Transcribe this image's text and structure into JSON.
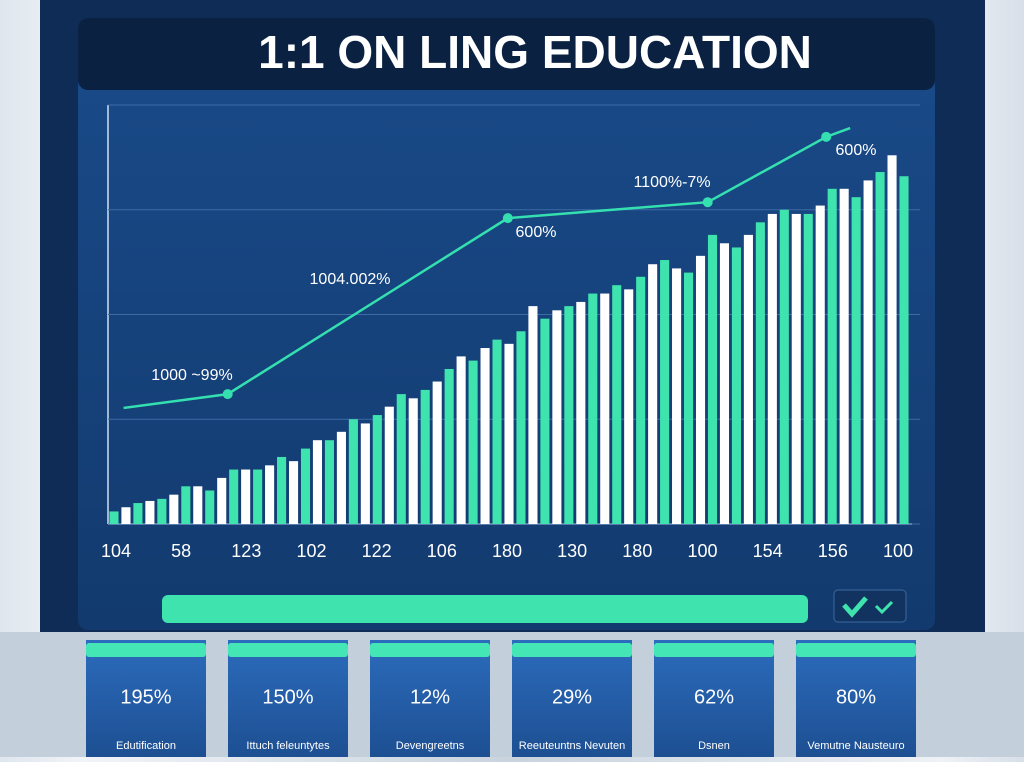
{
  "chart_data": {
    "type": "bar",
    "title": "1:1 ON  LING EDUCATION",
    "xtick_labels": [
      "104",
      "58",
      "123",
      "102",
      "122",
      "106",
      "180",
      "130",
      "180",
      "100",
      "154",
      "156",
      "100"
    ],
    "values": [
      3,
      4,
      5,
      5.5,
      6,
      7,
      9,
      9,
      8,
      11,
      13,
      13,
      13,
      14,
      16,
      15,
      18,
      20,
      20,
      22,
      25,
      24,
      26,
      28,
      31,
      30,
      32,
      34,
      37,
      40,
      39,
      42,
      44,
      43,
      46,
      52,
      49,
      51,
      52,
      53,
      55,
      55,
      57,
      56,
      59,
      62,
      63,
      61,
      60,
      64,
      69,
      67,
      66,
      69,
      72,
      74,
      75,
      74,
      74,
      76,
      80,
      80,
      78,
      82,
      84,
      88,
      83
    ],
    "colors": [
      "#3fe3ad",
      "#ffffff"
    ],
    "ylim": [
      0,
      100
    ],
    "yticks": [
      0,
      25,
      50,
      75,
      100
    ],
    "grid": true,
    "line": {
      "color": "#35e0b0",
      "x": [
        1.3,
        10.0,
        33.4,
        50.1,
        60.0,
        62.0
      ],
      "values": [
        27.7,
        31.0,
        73.0,
        76.8,
        92.4,
        94.5
      ]
    },
    "xlim": [
      0,
      67
    ],
    "annotations": [
      "1000 ~99%",
      "1004.002%",
      "600%",
      "1100%-7%",
      "600%"
    ],
    "cards": [
      {
        "value": "195%",
        "label": "Edutification"
      },
      {
        "value": "150%",
        "label": "Ittuch feleuntytes"
      },
      {
        "value": "12%",
        "label": "Devengreetns"
      },
      {
        "value": "29%",
        "label": "Reeuteuntns Nevuten"
      },
      {
        "value": "62%",
        "label": "Dsnen"
      },
      {
        "value": "80%",
        "label": "Vemutne Nausteuro"
      }
    ]
  }
}
